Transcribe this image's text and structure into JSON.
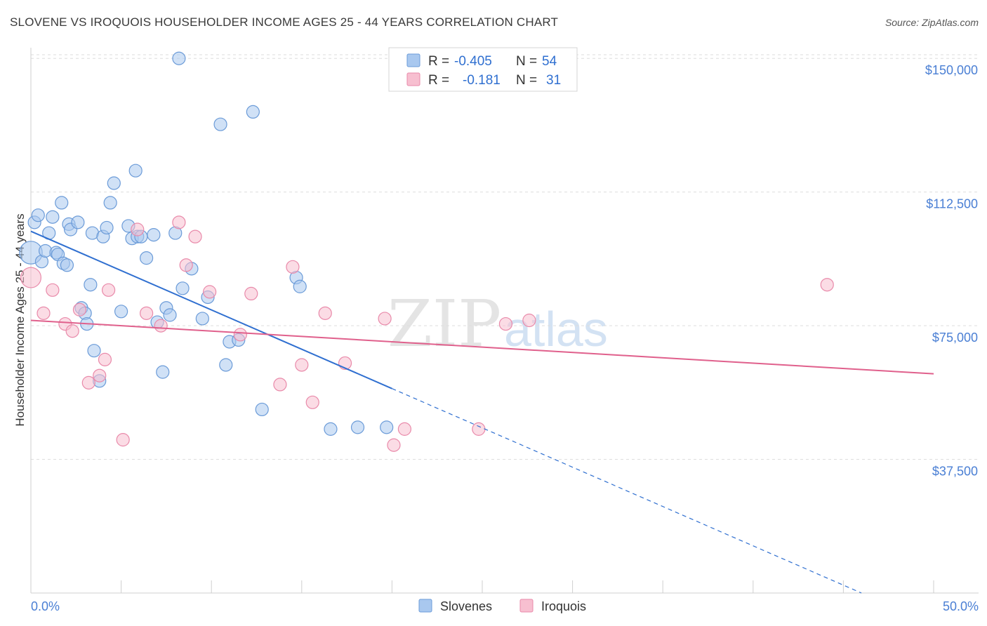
{
  "header": {
    "title": "SLOVENE VS IROQUOIS HOUSEHOLDER INCOME AGES 25 - 44 YEARS CORRELATION CHART",
    "source": "Source: ZipAtlas.com"
  },
  "colors": {
    "slovenes_fill": "#a9c8ef",
    "slovenes_stroke": "#6b9bd8",
    "slovenes_line": "#2f6fd0",
    "iroquois_fill": "#f7bfd0",
    "iroquois_stroke": "#e98aaa",
    "iroquois_line": "#e0608c",
    "grid": "#dddddd",
    "tick_label": "#4a7fd4"
  },
  "legend": {
    "rows": [
      {
        "r_label": "R = ",
        "r_value": "-0.405",
        "n_label": "N = ",
        "n_value": "54"
      },
      {
        "r_label": "R = ",
        "r_value": "-0.181",
        "n_label": "N = ",
        "n_value": "31"
      }
    ]
  },
  "watermark": {
    "zip": "ZIP",
    "atlas": "atlas"
  },
  "chart_data": {
    "type": "scatter",
    "title": "SLOVENE VS IROQUOIS HOUSEHOLDER INCOME AGES 25 - 44 YEARS CORRELATION CHART",
    "xlabel": "",
    "ylabel": "Householder Income Ages 25 - 44 years",
    "xlim": [
      0,
      50
    ],
    "ylim": [
      0,
      153000
    ],
    "x_tick_labels": [
      "0.0%",
      "50.0%"
    ],
    "y_ticks": [
      37500,
      75000,
      112500,
      150000
    ],
    "y_tick_labels": [
      "$37,500",
      "$75,000",
      "$112,500",
      "$150,000"
    ],
    "grid": "dashed horizontal",
    "series": [
      {
        "name": "Slovenes",
        "R": -0.405,
        "N": 54,
        "trend": {
          "x0": 0,
          "y0": 101500,
          "x_solid_end": 20,
          "x1": 46,
          "y1": 0
        },
        "points": [
          [
            0.0,
            95500,
            1.8
          ],
          [
            0.2,
            104000,
            1
          ],
          [
            0.4,
            106000,
            1
          ],
          [
            0.6,
            93000,
            1
          ],
          [
            0.8,
            96000,
            1
          ],
          [
            1.0,
            101000,
            1
          ],
          [
            1.2,
            105500,
            1
          ],
          [
            1.4,
            95500,
            1
          ],
          [
            1.5,
            95000,
            1
          ],
          [
            1.7,
            109500,
            1
          ],
          [
            1.8,
            92500,
            1
          ],
          [
            2.0,
            92000,
            1
          ],
          [
            2.1,
            103500,
            1
          ],
          [
            2.2,
            102000,
            1
          ],
          [
            2.6,
            104000,
            1
          ],
          [
            2.8,
            80000,
            1
          ],
          [
            3.0,
            78500,
            1
          ],
          [
            3.1,
            75500,
            1
          ],
          [
            3.3,
            86500,
            1
          ],
          [
            3.4,
            101000,
            1
          ],
          [
            3.5,
            68000,
            1
          ],
          [
            3.8,
            59500,
            1
          ],
          [
            4.0,
            100000,
            1
          ],
          [
            4.2,
            102500,
            1
          ],
          [
            4.4,
            109500,
            1
          ],
          [
            4.6,
            115000,
            1
          ],
          [
            5.0,
            79000,
            1
          ],
          [
            5.4,
            103000,
            1
          ],
          [
            5.6,
            99500,
            1
          ],
          [
            5.8,
            118500,
            1
          ],
          [
            5.9,
            100000,
            1
          ],
          [
            6.1,
            100000,
            1
          ],
          [
            6.4,
            94000,
            1
          ],
          [
            6.8,
            100500,
            1
          ],
          [
            7.0,
            76000,
            1
          ],
          [
            7.3,
            62000,
            1
          ],
          [
            7.5,
            80000,
            1
          ],
          [
            7.7,
            78000,
            1
          ],
          [
            8.0,
            101000,
            1
          ],
          [
            8.2,
            150000,
            1
          ],
          [
            8.4,
            85500,
            1
          ],
          [
            8.9,
            91000,
            1
          ],
          [
            9.5,
            77000,
            1
          ],
          [
            9.8,
            83000,
            1
          ],
          [
            10.5,
            131500,
            1
          ],
          [
            10.8,
            64000,
            1
          ],
          [
            11.0,
            70500,
            1
          ],
          [
            11.5,
            71000,
            1
          ],
          [
            12.3,
            135000,
            1
          ],
          [
            12.8,
            51500,
            1
          ],
          [
            14.7,
            88500,
            1
          ],
          [
            14.9,
            86000,
            1
          ],
          [
            16.6,
            46000,
            1
          ],
          [
            18.1,
            46500,
            1
          ],
          [
            19.7,
            46500,
            1
          ]
        ]
      },
      {
        "name": "Iroquois",
        "R": -0.181,
        "N": 31,
        "trend": {
          "x0": 0,
          "y0": 76500,
          "x1": 50,
          "y1": 61500
        },
        "points": [
          [
            0.0,
            88500,
            1.6
          ],
          [
            0.7,
            78500,
            1
          ],
          [
            1.2,
            85000,
            1
          ],
          [
            1.9,
            75500,
            1
          ],
          [
            2.3,
            73500,
            1
          ],
          [
            2.7,
            79500,
            1
          ],
          [
            3.2,
            59000,
            1
          ],
          [
            3.8,
            61000,
            1
          ],
          [
            4.1,
            65500,
            1
          ],
          [
            4.3,
            85000,
            1
          ],
          [
            5.1,
            43000,
            1
          ],
          [
            5.9,
            102000,
            1
          ],
          [
            6.4,
            78500,
            1
          ],
          [
            7.2,
            75000,
            1
          ],
          [
            8.2,
            104000,
            1
          ],
          [
            8.6,
            92000,
            1
          ],
          [
            9.1,
            100000,
            1
          ],
          [
            9.9,
            84500,
            1
          ],
          [
            11.6,
            72500,
            1
          ],
          [
            12.2,
            84000,
            1
          ],
          [
            13.8,
            58500,
            1
          ],
          [
            14.5,
            91500,
            1
          ],
          [
            15.0,
            64000,
            1
          ],
          [
            15.6,
            53500,
            1
          ],
          [
            16.3,
            78500,
            1
          ],
          [
            17.4,
            64500,
            1
          ],
          [
            19.6,
            77000,
            1
          ],
          [
            20.1,
            41500,
            1
          ],
          [
            20.7,
            46000,
            1
          ],
          [
            24.8,
            46000,
            1
          ],
          [
            26.3,
            75500,
            1
          ],
          [
            27.6,
            76500,
            1
          ],
          [
            44.1,
            86500,
            1
          ]
        ]
      }
    ]
  },
  "bottom_legend": {
    "items": [
      "Slovenes",
      "Iroquois"
    ]
  }
}
